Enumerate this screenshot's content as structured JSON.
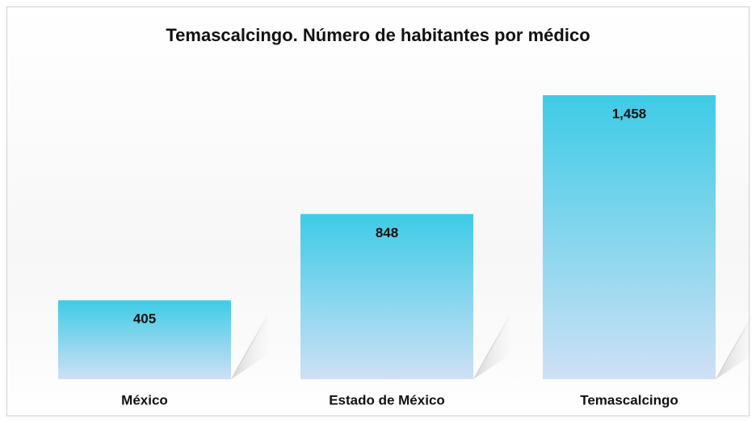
{
  "chart_data": {
    "type": "bar",
    "title": "Temascalcingo. Número de habitantes por médico",
    "categories": [
      "México",
      "Estado de México",
      "Temascalcingo"
    ],
    "values": [
      405,
      848,
      1458
    ],
    "value_labels": [
      "405",
      "848",
      "1,458"
    ],
    "color": "#3ecbe6"
  }
}
